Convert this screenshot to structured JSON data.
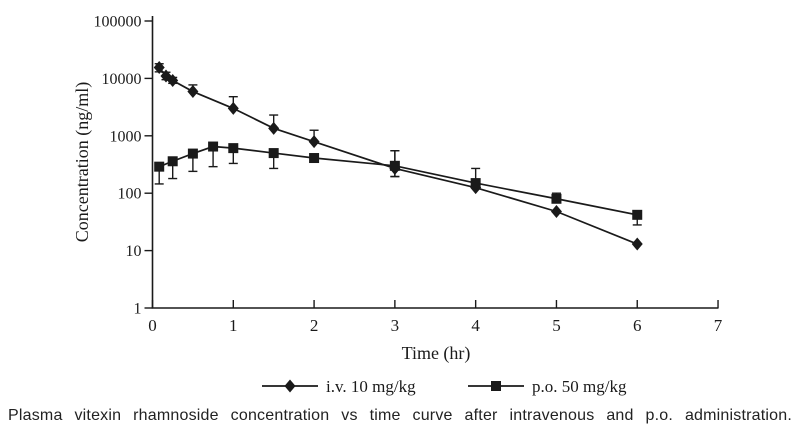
{
  "caption": "Plasma vitexin rhamnoside concentration vs time curve after intravenous and p.o. administration.",
  "colors": {
    "axis": "#1a1a1a",
    "series": "#1a1a1a",
    "text": "#1a1a1a",
    "background": "#ffffff"
  },
  "chart_data": {
    "type": "line",
    "title": "",
    "xlabel": "Time (hr)",
    "ylabel": "Concentration (ng/ml)",
    "y_scale": "log",
    "xlim": [
      0,
      7
    ],
    "ylim": [
      1,
      100000
    ],
    "x_tick_labels": [
      "0",
      "1",
      "2",
      "3",
      "4",
      "5",
      "6",
      "7"
    ],
    "y_tick_labels": [
      "1",
      "10",
      "100",
      "1000",
      "10000",
      "100000"
    ],
    "grid": false,
    "legend_position": "bottom",
    "error_bars": true,
    "series": [
      {
        "name": "i.v. 10 mg/kg",
        "marker": "diamond",
        "color": "#1a1a1a",
        "x": [
          0.083,
          0.167,
          0.25,
          0.5,
          1,
          1.5,
          2,
          3,
          4,
          5,
          6
        ],
        "y": [
          15500,
          11000,
          9200,
          5900,
          3000,
          1350,
          790,
          270,
          125,
          48,
          13
        ],
        "err_up": [
          2500,
          1800,
          1200,
          1800,
          1800,
          950,
          460,
          280,
          0,
          0,
          0
        ],
        "err_down": [
          2500,
          1500,
          1000,
          0,
          0,
          0,
          0,
          75,
          0,
          0,
          0
        ]
      },
      {
        "name": "p.o. 50 mg/kg",
        "marker": "square",
        "color": "#1a1a1a",
        "x": [
          0.083,
          0.25,
          0.5,
          0.75,
          1,
          1.5,
          2,
          3,
          4,
          5,
          6
        ],
        "y": [
          290,
          360,
          490,
          650,
          610,
          500,
          410,
          300,
          150,
          80,
          42
        ],
        "err_up": [
          0,
          0,
          0,
          0,
          0,
          0,
          0,
          250,
          120,
          20,
          0
        ],
        "err_down": [
          145,
          180,
          250,
          360,
          280,
          230,
          0,
          105,
          0,
          0,
          14
        ]
      }
    ]
  }
}
